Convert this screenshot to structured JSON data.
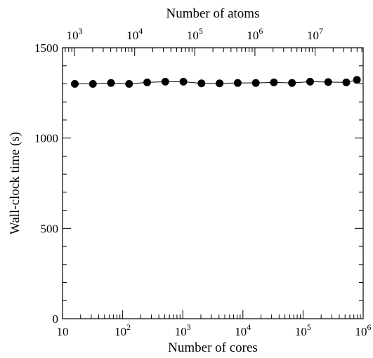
{
  "chart_data": {
    "type": "scatter",
    "title": "",
    "xlabel": "Number of cores",
    "ylabel": "Wall-clock time (s)",
    "x2label": "Number of atoms",
    "xscale": "log",
    "x2scale": "log",
    "xlim": [
      10,
      1000000
    ],
    "x2lim": [
      631,
      63100000
    ],
    "ylim": [
      0,
      1500
    ],
    "grid": false,
    "legend": "none",
    "x_ticks": [
      {
        "value": 10,
        "label": "10"
      },
      {
        "value": 100,
        "base": "10",
        "exp": "2"
      },
      {
        "value": 1000,
        "base": "10",
        "exp": "3"
      },
      {
        "value": 10000,
        "base": "10",
        "exp": "4"
      },
      {
        "value": 100000,
        "base": "10",
        "exp": "5"
      },
      {
        "value": 1000000,
        "base": "10",
        "exp": "6"
      }
    ],
    "x2_ticks": [
      {
        "value": 1000,
        "base": "10",
        "exp": "3"
      },
      {
        "value": 10000,
        "base": "10",
        "exp": "4"
      },
      {
        "value": 100000,
        "base": "10",
        "exp": "5"
      },
      {
        "value": 1000000,
        "base": "10",
        "exp": "6"
      },
      {
        "value": 10000000,
        "base": "10",
        "exp": "7"
      }
    ],
    "y_ticks": [
      0,
      500,
      1000,
      1500
    ],
    "series": [
      {
        "marker": "filled-circle",
        "color": "#000000",
        "x": [
          16,
          32,
          64,
          128,
          256,
          512,
          1024,
          2048,
          4096,
          8192,
          16384,
          32768,
          65536,
          131072,
          262144,
          524288,
          786432
        ],
        "y": [
          1300,
          1300,
          1305,
          1300,
          1308,
          1312,
          1312,
          1303,
          1303,
          1305,
          1305,
          1308,
          1305,
          1312,
          1310,
          1308,
          1322
        ]
      }
    ]
  }
}
